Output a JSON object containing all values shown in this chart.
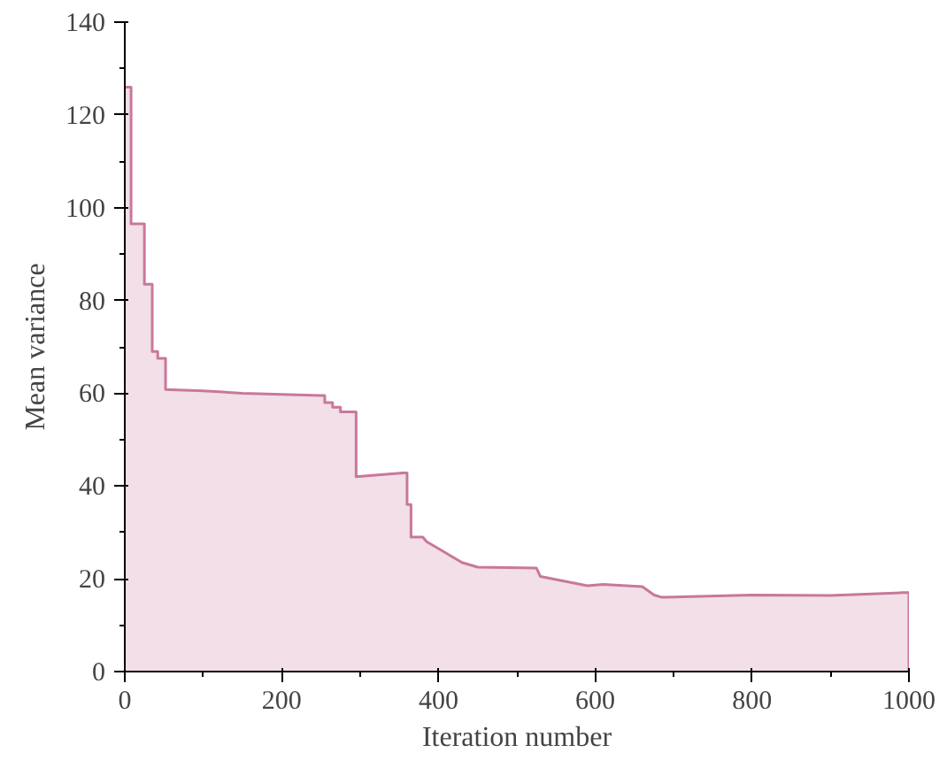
{
  "chart_data": {
    "type": "area",
    "xlabel": "Iteration number",
    "ylabel": "Mean variance",
    "xlim": [
      0,
      1000
    ],
    "ylim": [
      0,
      140
    ],
    "xticks": [
      0,
      200,
      400,
      600,
      800,
      1000
    ],
    "yticks": [
      0,
      20,
      40,
      60,
      80,
      100,
      120,
      140
    ],
    "grid": false,
    "series": [
      {
        "color": "#c8789a",
        "x": [
          0,
          8,
          8,
          25,
          25,
          35,
          35,
          42,
          42,
          52,
          52,
          100,
          150,
          250,
          255,
          255,
          265,
          265,
          275,
          275,
          295,
          295,
          355,
          360,
          360,
          365,
          365,
          380,
          385,
          400,
          410,
          420,
          430,
          450,
          525,
          530,
          560,
          590,
          610,
          660,
          675,
          685,
          800,
          900,
          990,
          1000,
          1000
        ],
        "values": [
          126,
          126,
          96.5,
          96.5,
          83.5,
          83.5,
          69,
          69,
          67.5,
          67.5,
          60.8,
          60.5,
          60,
          59.5,
          59.5,
          58,
          58,
          57,
          57,
          56,
          56,
          42,
          42.8,
          42.8,
          36,
          36,
          29,
          29,
          28,
          26.5,
          25.5,
          24.5,
          23.5,
          22.5,
          22.3,
          20.5,
          19.5,
          18.5,
          18.8,
          18.3,
          16.5,
          16,
          16.5,
          16.4,
          17,
          17,
          0
        ]
      }
    ]
  }
}
